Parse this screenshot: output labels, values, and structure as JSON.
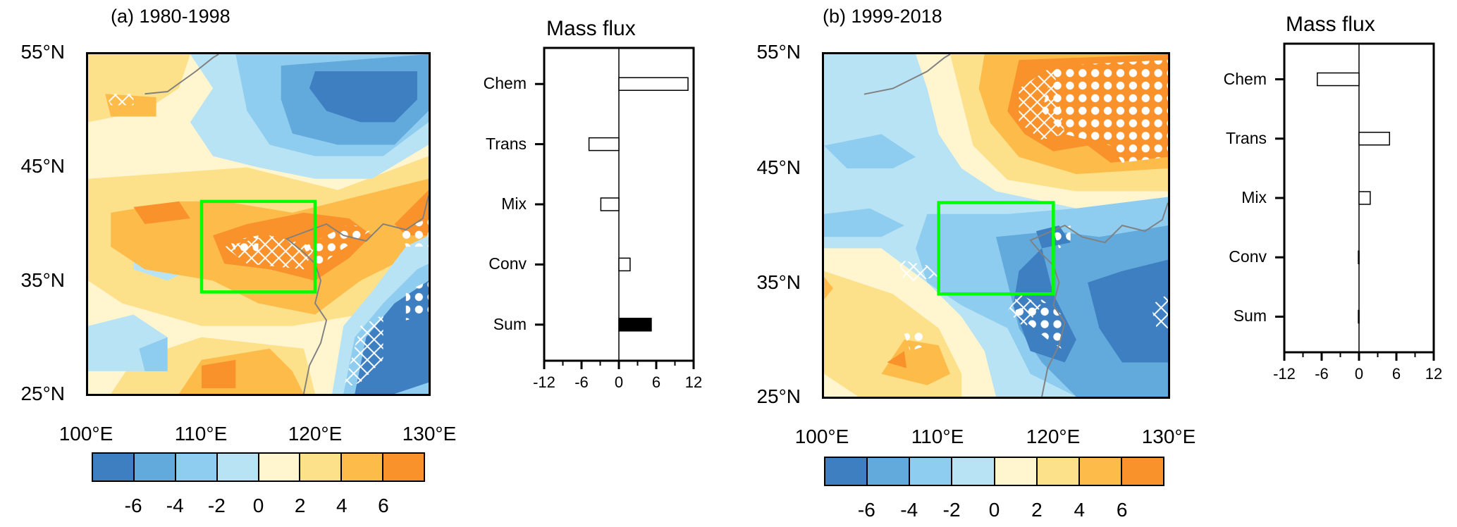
{
  "colors": {
    "levels": [
      "#3d7fc1",
      "#63aadc",
      "#8ecdf0",
      "#b8e3f5",
      "#fff5cf",
      "#fde08a",
      "#fdbb4a",
      "#f9922b"
    ],
    "box": "#00ff00",
    "coast": "#808080"
  },
  "maps": [
    {
      "title": "(a) 1980-1998",
      "lat_ticks": [
        "55°N",
        "45°N",
        "35°N",
        "25°N"
      ],
      "lon_ticks": [
        "100°E",
        "110°E",
        "120°E",
        "130°E"
      ],
      "colorbar_labels": [
        "-6",
        "-4",
        "-2",
        "0",
        "2",
        "4",
        "6"
      ],
      "box_region": {
        "lon": [
          110,
          120
        ],
        "lat": [
          34,
          42
        ]
      }
    },
    {
      "title": "(b) 1999-2018",
      "lat_ticks": [
        "55°N",
        "45°N",
        "35°N",
        "25°N"
      ],
      "lon_ticks": [
        "100°E",
        "110°E",
        "120°E",
        "130°E"
      ],
      "colorbar_labels": [
        "-6",
        "-4",
        "-2",
        "0",
        "2",
        "4",
        "6"
      ],
      "box_region": {
        "lon": [
          110,
          120
        ],
        "lat": [
          34,
          42
        ]
      }
    }
  ],
  "chart_data": [
    {
      "type": "bar",
      "orientation": "horizontal",
      "title": "Mass flux",
      "categories": [
        "Chem",
        "Trans",
        "Mix",
        "Conv",
        "Sum"
      ],
      "values": [
        11.1,
        -4.8,
        -2.9,
        1.8,
        5.2
      ],
      "filled": [
        false,
        false,
        false,
        false,
        true
      ],
      "xlim": [
        -12,
        12
      ],
      "xticks": [
        "-12",
        "-6",
        "0",
        "6",
        "12"
      ]
    },
    {
      "type": "bar",
      "orientation": "horizontal",
      "title": "Mass flux",
      "categories": [
        "Chem",
        "Trans",
        "Mix",
        "Conv",
        "Sum"
      ],
      "values": [
        -6.7,
        4.9,
        1.8,
        -0.1,
        -0.1
      ],
      "filled": [
        false,
        false,
        false,
        false,
        true
      ],
      "xlim": [
        -12,
        12
      ],
      "xticks": [
        "-12",
        "-6",
        "0",
        "6",
        "12"
      ]
    }
  ]
}
